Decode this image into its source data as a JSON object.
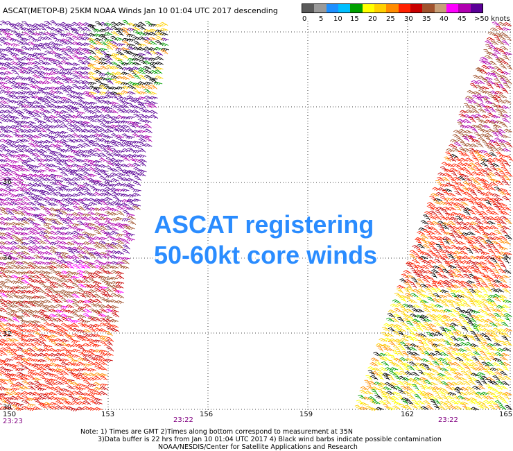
{
  "title": "ASCAT(METOP-B) 25KM NOAA Winds  Jan 10 01:04 UTC 2017 descending",
  "legend": {
    "colors": [
      "#5a5a5a",
      "#9a9a9a",
      "#1e90ff",
      "#00bfff",
      "#00a000",
      "#ffff00",
      "#ffd000",
      "#ff8c00",
      "#ff2000",
      "#c80000",
      "#a0522d",
      "#c8a078",
      "#ff00ff",
      "#b000b0",
      "#5a0096"
    ],
    "labels": [
      "0",
      "5",
      "10",
      "15",
      "20",
      "25",
      "30",
      "35",
      "40",
      "45",
      ">50 knots"
    ]
  },
  "map": {
    "lat_labels": [
      "36",
      "34",
      "32",
      "30"
    ],
    "lon_labels": [
      "150",
      "153",
      "156",
      "159",
      "162",
      "165"
    ],
    "time_labels": [
      "23:23",
      "23:22",
      "23:22"
    ]
  },
  "annotation": {
    "line1": "ASCAT registering",
    "line2": "50-60kt core winds"
  },
  "footer": {
    "line1": "Note: 1) Times are GMT 2)Times along bottom correspond to measurement at 35N",
    "line2": "3)Data buffer is 22 hrs from Jan 10 01:04 UTC 2017 4) Black wind barbs indicate possible contamination",
    "line3": "NOAA/NESDIS/Center for Satellite Applications and Research"
  }
}
